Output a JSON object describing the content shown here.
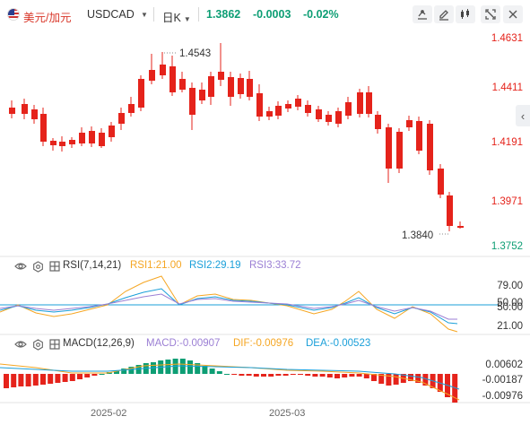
{
  "header": {
    "symbol_cn": "美元/加元",
    "symbol": "USDCAD",
    "period": "日K",
    "price": "1.3862",
    "change": "-0.0003",
    "change_pct": "-0.02%"
  },
  "main_axis": [
    "1.4631",
    "1.4411",
    "1.4191",
    "1.3971",
    "1.3752"
  ],
  "annotations": {
    "high": "1.4543",
    "low": "1.3840"
  },
  "rsi": {
    "name": "RSI(7,14,21)",
    "rsi1": "RSI1:21.00",
    "rsi2": "RSI2:29.19",
    "rsi3": "RSI3:33.72",
    "axis": [
      "79.00",
      "50.00",
      "50.00",
      "21.00"
    ]
  },
  "macd": {
    "name": "MACD(12,26,9)",
    "macd": "MACD:-0.00907",
    "dif": "DIF:-0.00976",
    "dea": "DEA:-0.00523",
    "axis": [
      "0.00602",
      "-0.00187",
      "-0.00976"
    ]
  },
  "dates": [
    "2025-02",
    "2025-03"
  ],
  "colors": {
    "up": "#0d9e74",
    "down": "#e5231b",
    "dif": "#f5a623",
    "dea": "#1a9fd9",
    "macd": "#9b7fd4",
    "rsi1": "#f5a623",
    "rsi2": "#1a9fd9",
    "rsi3": "#9b7fd4"
  },
  "icons": [
    "flag-icon",
    "chevron-down-icon",
    "draw-icon",
    "edit-icon",
    "candle-type-icon",
    "expand-icon",
    "settings-icon",
    "eye-icon",
    "gear-icon",
    "indicator-icon",
    "side-arrow-icon"
  ]
}
